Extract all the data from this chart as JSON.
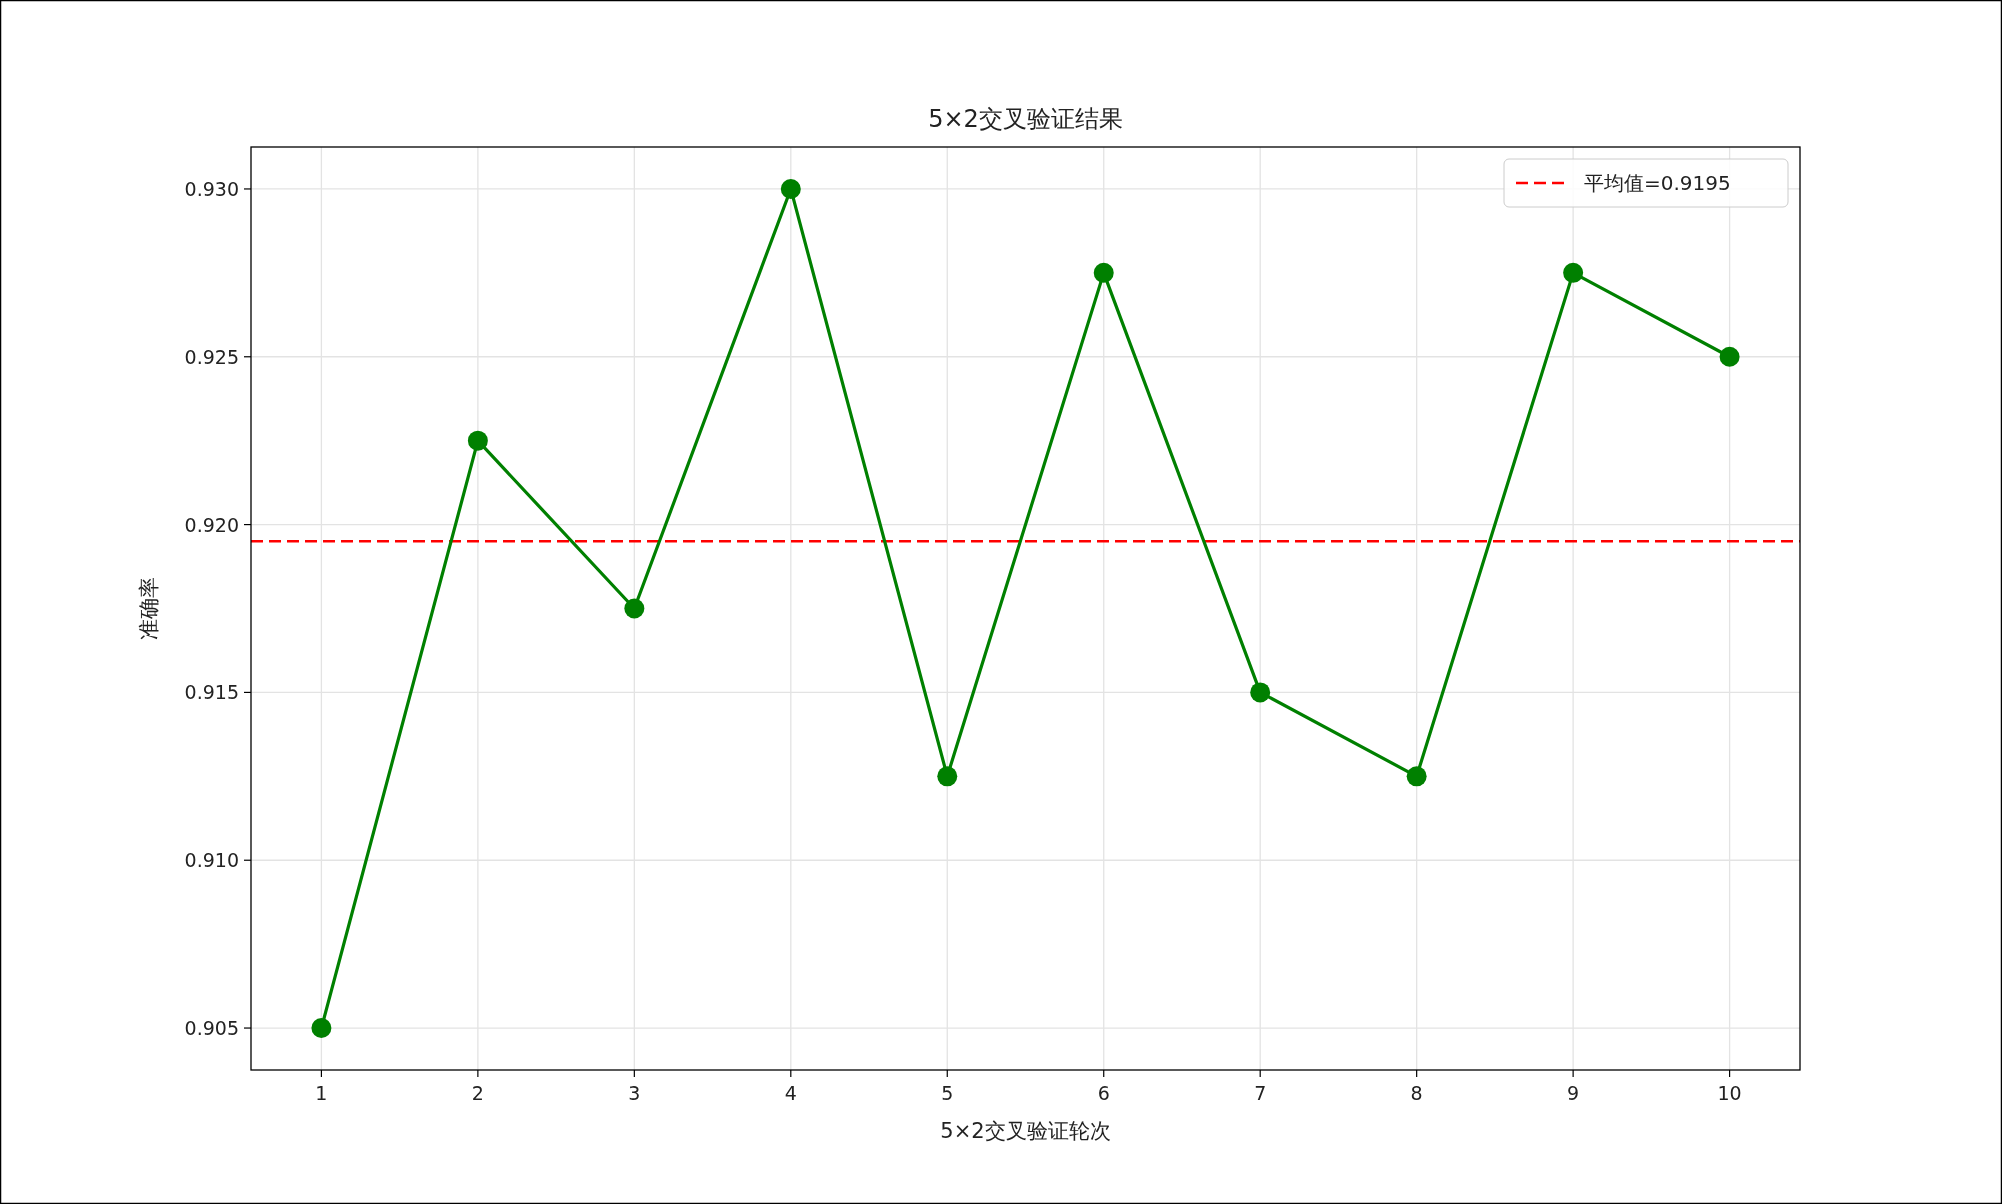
{
  "chart_data": {
    "type": "line",
    "title": "5×2交叉验证结果",
    "xlabel": "5×2交叉验证轮次",
    "ylabel": "准确率",
    "x": [
      1,
      2,
      3,
      4,
      5,
      6,
      7,
      8,
      9,
      10
    ],
    "series": [
      {
        "color": "#008000",
        "values": [
          0.905,
          0.9225,
          0.9175,
          0.93,
          0.9125,
          0.9275,
          0.915,
          0.9125,
          0.9275,
          0.925
        ]
      }
    ],
    "marker": "circle",
    "line_style": "solid",
    "xlim": [
      0.55,
      10.45
    ],
    "xticks": [
      1,
      2,
      3,
      4,
      5,
      6,
      7,
      8,
      9,
      10
    ],
    "ylim": [
      0.90375,
      0.93125
    ],
    "yticks": [
      {
        "value": 0.905,
        "label": "0.905"
      },
      {
        "value": 0.91,
        "label": "0.910"
      },
      {
        "value": 0.915,
        "label": "0.915"
      },
      {
        "value": 0.92,
        "label": "0.920"
      },
      {
        "value": 0.925,
        "label": "0.925"
      },
      {
        "value": 0.93,
        "label": "0.930"
      }
    ],
    "ref_lines": [
      {
        "axis": "y",
        "value": 0.9195,
        "label": "平均值=0.9195",
        "color": "#ff0000",
        "line_style": "dashed"
      }
    ],
    "grid": true,
    "legend": "top right"
  }
}
